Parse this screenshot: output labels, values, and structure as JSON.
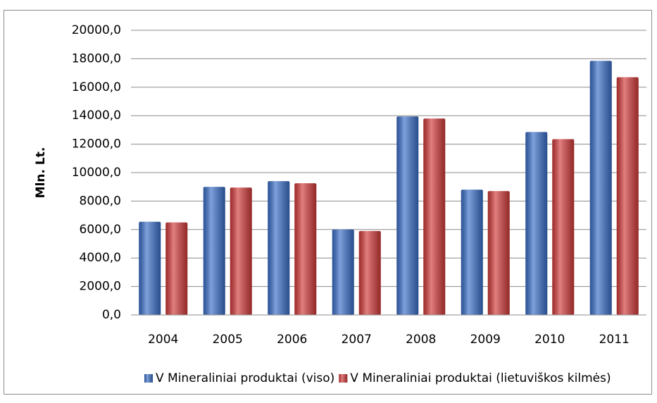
{
  "chart_data": {
    "type": "bar",
    "y_label": "Mln. Lt.",
    "categories": [
      "2004",
      "2005",
      "2006",
      "2007",
      "2008",
      "2009",
      "2010",
      "2011"
    ],
    "series": [
      {
        "name": "V Mineraliniai produktai (viso)",
        "color": "#3a6fc8",
        "values": [
          6550,
          9000,
          9400,
          6000,
          13950,
          8800,
          12850,
          17850
        ]
      },
      {
        "name": "V Mineraliniai produktai (lietuviškos kilmės)",
        "color": "#d23a3a",
        "values": [
          6500,
          8950,
          9250,
          5900,
          13800,
          8700,
          12350,
          16700
        ]
      }
    ],
    "ylim": [
      0,
      20000
    ],
    "yticks": [
      {
        "value": 0,
        "label": "0,0"
      },
      {
        "value": 2000,
        "label": "2000,0"
      },
      {
        "value": 4000,
        "label": "4000,0"
      },
      {
        "value": 6000,
        "label": "6000,0"
      },
      {
        "value": 8000,
        "label": "8000,0"
      },
      {
        "value": 10000,
        "label": "10000,0"
      },
      {
        "value": 12000,
        "label": "12000,0"
      },
      {
        "value": 14000,
        "label": "14000,0"
      },
      {
        "value": 16000,
        "label": "16000,0"
      },
      {
        "value": 18000,
        "label": "18000,0"
      },
      {
        "value": 20000,
        "label": "20000,0"
      }
    ],
    "grid": true,
    "legend": "bottom"
  }
}
